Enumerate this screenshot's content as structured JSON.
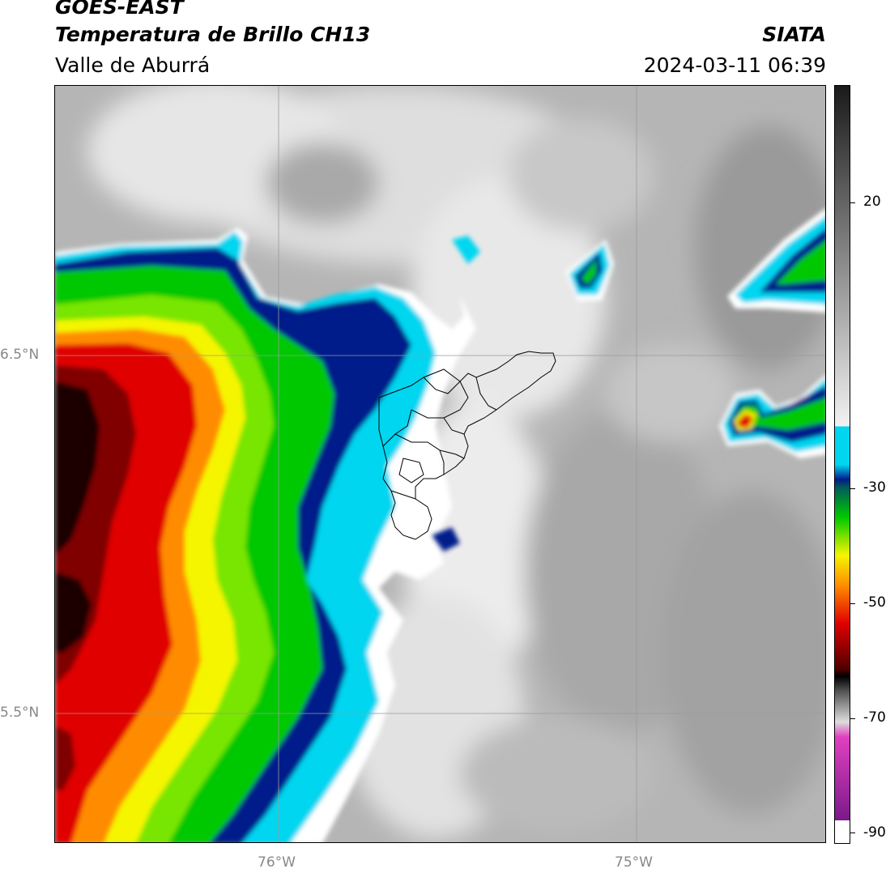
{
  "header": {
    "satellite": "GOES-EAST",
    "product": "Temperatura de Brillo CH13",
    "region": "Valle de Aburrá",
    "organization": "SIATA",
    "timestamp": "2024-03-11 06:39"
  },
  "map": {
    "lat_labels": [
      "6.5°N",
      "5.5°N"
    ],
    "lon_labels": [
      "76°W",
      "75°W"
    ]
  },
  "colorbar": {
    "tick_labels": [
      "20",
      "-30",
      "-50",
      "-70",
      "-90"
    ],
    "colors": {
      "warm": "#1a1a1a",
      "cyan": "#00d6f0",
      "blue": "#001b8a",
      "green": "#00c800",
      "yellow": "#f5f500",
      "orange": "#ff8c00",
      "red": "#e00000",
      "darkred": "#500000",
      "magenta": "#e040c0",
      "purple": "#7a1a8a"
    }
  }
}
